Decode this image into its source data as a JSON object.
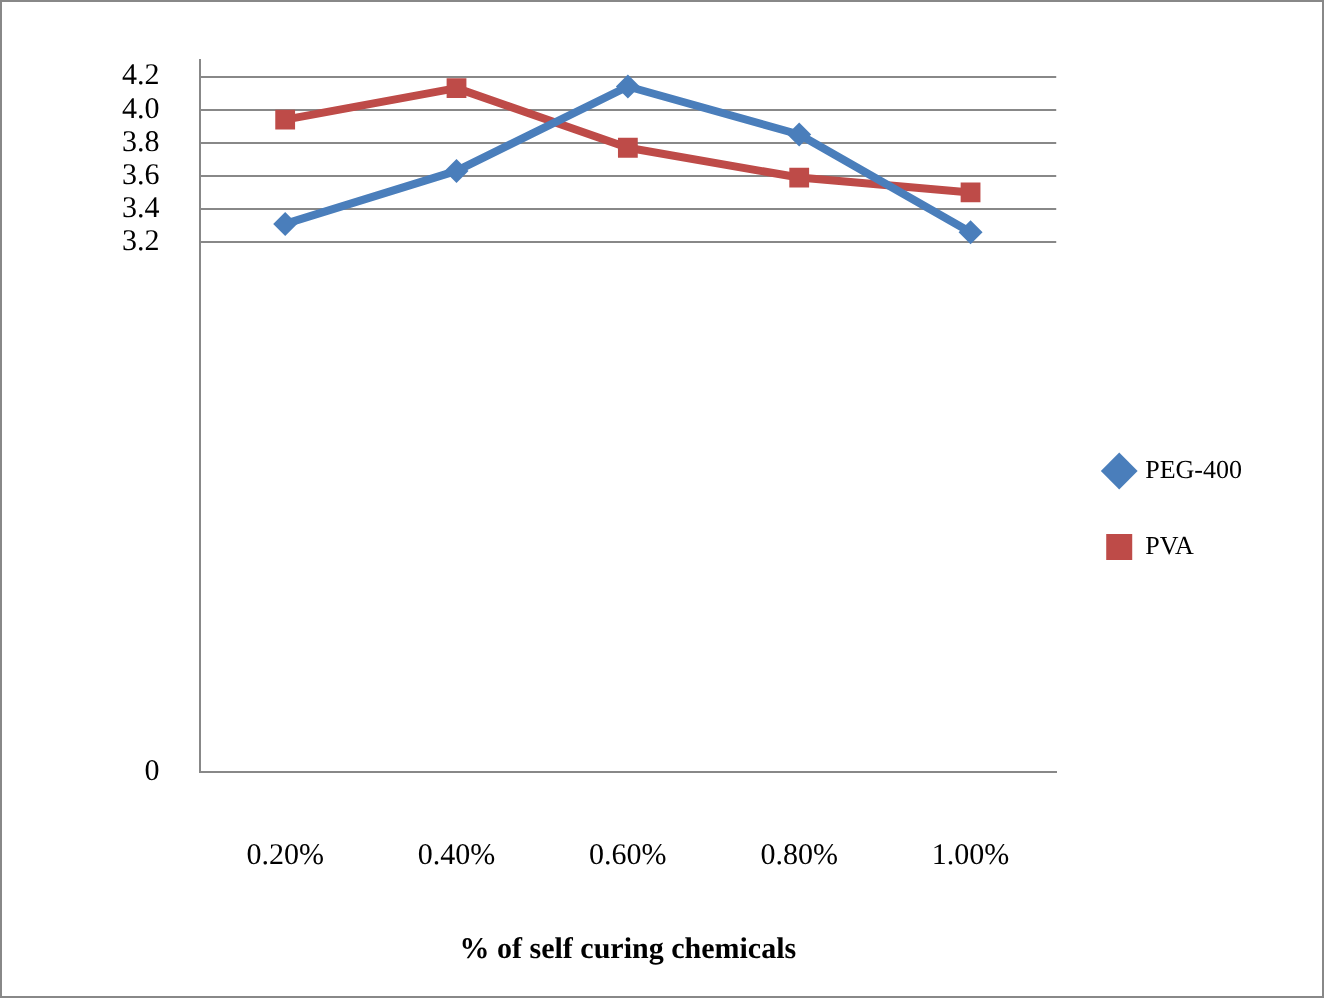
{
  "chart_data": {
    "type": "line",
    "xlabel": "% of self curing chemicals",
    "categories": [
      "0.20%",
      "0.40%",
      "0.60%",
      "0.80%",
      "1.00%"
    ],
    "series": [
      {
        "name": "PEG-400",
        "color": "#4a7ebb",
        "marker": "diamond",
        "values": [
          3.31,
          3.63,
          4.14,
          3.85,
          3.26
        ]
      },
      {
        "name": "PVA",
        "color": "#be4b48",
        "marker": "square",
        "values": [
          3.94,
          4.13,
          3.77,
          3.59,
          3.5
        ]
      }
    ],
    "ylim": [
      0,
      4.3
    ],
    "yticks": [
      0,
      3.2,
      3.4,
      3.6,
      3.8,
      {
        "value": 4.0,
        "label": "4.0"
      },
      4.2
    ],
    "grid": "y",
    "legend": "right",
    "line_style": "solid"
  }
}
